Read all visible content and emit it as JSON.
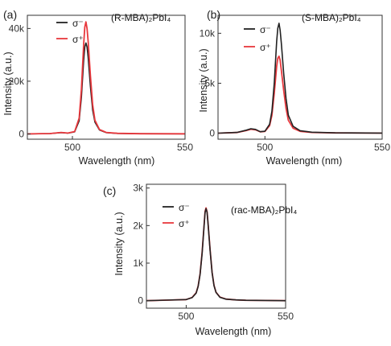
{
  "chart_data": [
    {
      "type": "line",
      "panel_label": "(a)",
      "annotation": "(R-MBA)₂PbI₄",
      "xlabel": "Wavelength (nm)",
      "ylabel": "Intensity (a.u.)",
      "xlim": [
        480,
        550
      ],
      "ylim": [
        -2000,
        45000
      ],
      "xticks": [
        500,
        550
      ],
      "yticks": [
        0,
        20000,
        40000
      ],
      "yticklabels": [
        "0",
        "20k",
        "40k"
      ],
      "legend_position": "top-left",
      "series": [
        {
          "name": "σ⁻",
          "color": "#222222",
          "x": [
            480,
            490,
            495,
            498,
            501,
            503,
            504,
            505,
            505.5,
            506,
            506.5,
            507,
            508,
            509,
            510,
            512,
            515,
            520,
            530,
            550
          ],
          "y": [
            0,
            150,
            500,
            300,
            800,
            5000,
            14000,
            28000,
            33000,
            34500,
            33000,
            29000,
            18000,
            9000,
            4500,
            1500,
            500,
            200,
            80,
            30
          ]
        },
        {
          "name": "σ⁺",
          "color": "#e8383d",
          "x": [
            480,
            490,
            495,
            498,
            501,
            503,
            504,
            505,
            505.5,
            506,
            506.5,
            507,
            508,
            509,
            510,
            512,
            515,
            520,
            530,
            550
          ],
          "y": [
            0,
            150,
            550,
            320,
            900,
            6000,
            17000,
            34000,
            40500,
            42500,
            40000,
            35000,
            22000,
            11000,
            5200,
            1700,
            550,
            220,
            90,
            30
          ]
        }
      ]
    },
    {
      "type": "line",
      "panel_label": "(b)",
      "annotation": "(S-MBA)₂PbI₄",
      "xlabel": "Wavelength (nm)",
      "ylabel": "Intensity (a.u.)",
      "xlim": [
        480,
        550
      ],
      "ylim": [
        -600,
        11800
      ],
      "xticks": [
        500,
        550
      ],
      "yticks": [
        0,
        5000,
        10000
      ],
      "yticklabels": [
        "0",
        "5k",
        "10k"
      ],
      "legend_position": "top-left",
      "series": [
        {
          "name": "σ⁻",
          "color": "#222222",
          "x": [
            480,
            488,
            492,
            494,
            496,
            498,
            500,
            502,
            503,
            504,
            505,
            505.5,
            506,
            506.5,
            507,
            508,
            509,
            510,
            512,
            515,
            520,
            530,
            550
          ],
          "y": [
            0,
            80,
            300,
            450,
            380,
            150,
            200,
            900,
            2200,
            5000,
            9200,
            10500,
            11000,
            10300,
            9000,
            6000,
            3500,
            1800,
            700,
            250,
            100,
            40,
            10
          ]
        },
        {
          "name": "σ⁺",
          "color": "#e8383d",
          "x": [
            480,
            488,
            492,
            494,
            496,
            498,
            500,
            502,
            503,
            504,
            505,
            505.5,
            506,
            506.5,
            507,
            508,
            509,
            510,
            512,
            515,
            520,
            530,
            550
          ],
          "y": [
            0,
            70,
            270,
            400,
            340,
            140,
            180,
            750,
            1800,
            4000,
            6700,
            7500,
            7700,
            7300,
            6300,
            4300,
            2500,
            1300,
            500,
            190,
            80,
            30,
            10
          ]
        }
      ]
    },
    {
      "type": "line",
      "panel_label": "(c)",
      "annotation": "(rac-MBA)₂PbI₄",
      "xlabel": "Wavelength (nm)",
      "ylabel": "Intensity (a.u.)",
      "xlim": [
        480,
        550
      ],
      "ylim": [
        -200,
        3100
      ],
      "xticks": [
        500,
        550
      ],
      "yticks": [
        0,
        1000,
        2000,
        3000
      ],
      "yticklabels": [
        "0",
        "1k",
        "2k",
        "3k"
      ],
      "legend_position": "top-left",
      "series": [
        {
          "name": "σ⁻",
          "color": "#222222",
          "x": [
            480,
            490,
            500,
            503,
            505,
            506,
            507,
            508,
            509,
            509.5,
            510,
            510.5,
            511,
            512,
            513,
            514,
            515,
            517,
            520,
            525,
            530,
            540,
            550
          ],
          "y": [
            0,
            15,
            30,
            80,
            200,
            380,
            700,
            1250,
            2000,
            2350,
            2450,
            2350,
            2050,
            1350,
            750,
            400,
            220,
            90,
            40,
            20,
            10,
            5,
            0
          ]
        },
        {
          "name": "σ⁺",
          "color": "#e8383d",
          "x": [
            480,
            490,
            500,
            503,
            505,
            506,
            507,
            508,
            509,
            509.5,
            510,
            510.5,
            511,
            512,
            513,
            514,
            515,
            517,
            520,
            525,
            530,
            540,
            550
          ],
          "y": [
            0,
            15,
            30,
            85,
            210,
            390,
            720,
            1280,
            2020,
            2380,
            2470,
            2370,
            2060,
            1370,
            760,
            410,
            225,
            95,
            42,
            20,
            10,
            5,
            0
          ]
        }
      ]
    }
  ]
}
